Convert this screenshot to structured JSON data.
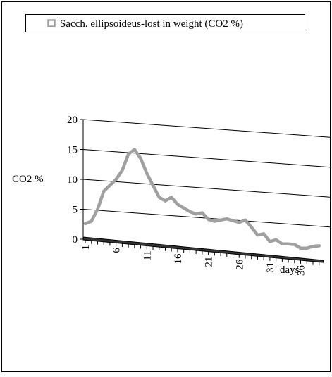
{
  "chart_data": {
    "type": "line",
    "legend": {
      "label": "Sacch. ellipsoideus-lost in weight (CO2 %)",
      "placement": "top"
    },
    "ylabel": "CO2 %",
    "xlabel": "days",
    "ylim": [
      0,
      20
    ],
    "y_ticks": [
      "0",
      "5",
      "10",
      "15",
      "20"
    ],
    "x_ticks": [
      "1",
      "6",
      "11",
      "16",
      "21",
      "26",
      "31",
      "36"
    ],
    "grid": true,
    "perspective": "3d-tilted",
    "series": [
      {
        "name": "Sacch. ellipsoideus-lost in weight (CO2 %)",
        "color": "#a0a0a0",
        "x": [
          1,
          2,
          3,
          4,
          5,
          6,
          7,
          8,
          9,
          10,
          11,
          12,
          13,
          14,
          15,
          16,
          17,
          18,
          19,
          20,
          21,
          22,
          23,
          24,
          25,
          26,
          27,
          28,
          29,
          30,
          31,
          32,
          33,
          34,
          35,
          36,
          37,
          38,
          39
        ],
        "values": [
          2.6,
          3.0,
          5.0,
          8.0,
          9.0,
          10.0,
          11.5,
          14.2,
          15.0,
          13.5,
          11.0,
          9.0,
          7.0,
          6.4,
          7.0,
          5.8,
          5.2,
          4.6,
          4.2,
          4.4,
          3.3,
          3.0,
          3.2,
          3.4,
          3.1,
          2.8,
          3.2,
          2.0,
          0.7,
          0.9,
          -0.4,
          -0.1,
          -0.8,
          -0.8,
          -0.9,
          -1.5,
          -1.5,
          -1.2,
          -1.1
        ]
      }
    ]
  }
}
